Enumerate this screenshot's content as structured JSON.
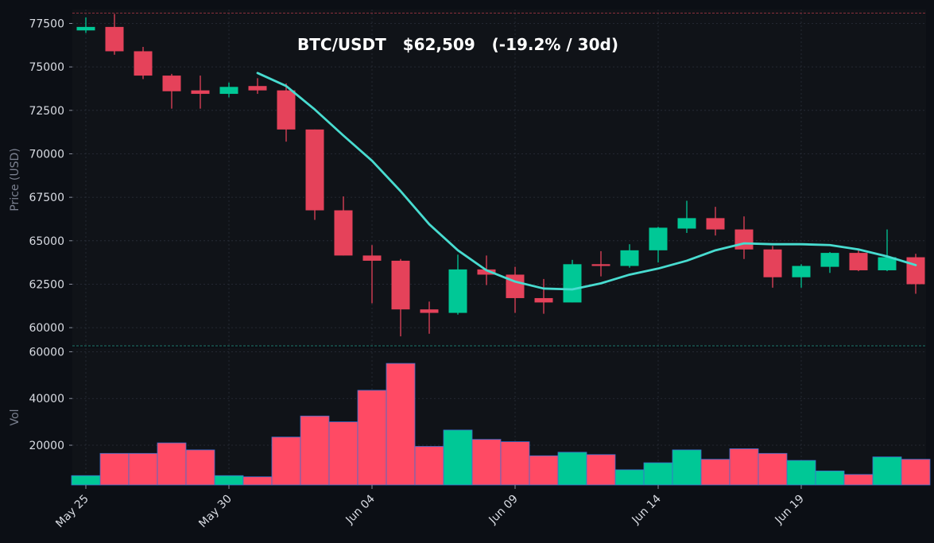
{
  "chart_data": [
    {
      "type": "candlestick",
      "title": "BTC/USDT   $62,509   (-19.2% / 30d)",
      "ylabel": "Price (USD)",
      "ylim": [
        59000,
        78300
      ],
      "yticks": [
        60000,
        62500,
        65000,
        67500,
        70000,
        72500,
        75000,
        77500
      ],
      "ytick_labels": [
        "60000",
        "62500",
        "65000",
        "67500",
        "70000",
        "72500",
        "75000",
        "77500"
      ],
      "xticks": [
        {
          "index": 0,
          "label": "May 25"
        },
        {
          "index": 5,
          "label": "May 30"
        },
        {
          "index": 10,
          "label": "Jun 04"
        },
        {
          "index": 15,
          "label": "Jun 09"
        },
        {
          "index": 20,
          "label": "Jun 14"
        },
        {
          "index": 25,
          "label": "Jun 19"
        }
      ],
      "candles": [
        {
          "open": 77100,
          "high": 77850,
          "low": 76950,
          "close": 77300
        },
        {
          "open": 77300,
          "high": 78050,
          "low": 75700,
          "close": 75900
        },
        {
          "open": 75900,
          "high": 76150,
          "low": 74300,
          "close": 74500
        },
        {
          "open": 74500,
          "high": 74600,
          "low": 72600,
          "close": 73600
        },
        {
          "open": 73650,
          "high": 74500,
          "low": 72600,
          "close": 73450
        },
        {
          "open": 73450,
          "high": 74100,
          "low": 73250,
          "close": 73850
        },
        {
          "open": 73900,
          "high": 74350,
          "low": 73450,
          "close": 73650
        },
        {
          "open": 73650,
          "high": 74050,
          "low": 70700,
          "close": 71400
        },
        {
          "open": 71400,
          "high": 71400,
          "low": 66200,
          "close": 66750
        },
        {
          "open": 66750,
          "high": 67550,
          "low": 64150,
          "close": 64150
        },
        {
          "open": 64150,
          "high": 64750,
          "low": 61400,
          "close": 63850
        },
        {
          "open": 63850,
          "high": 63950,
          "low": 59500,
          "close": 61050
        },
        {
          "open": 61050,
          "high": 61500,
          "low": 59650,
          "close": 60850
        },
        {
          "open": 60850,
          "high": 64200,
          "low": 60750,
          "close": 63350
        },
        {
          "open": 63350,
          "high": 64150,
          "low": 62450,
          "close": 63050
        },
        {
          "open": 63050,
          "high": 63500,
          "low": 60850,
          "close": 61700
        },
        {
          "open": 61700,
          "high": 62800,
          "low": 60800,
          "close": 61450
        },
        {
          "open": 61450,
          "high": 63900,
          "low": 61450,
          "close": 63650
        },
        {
          "open": 63650,
          "high": 64400,
          "low": 62950,
          "close": 63550
        },
        {
          "open": 63550,
          "high": 64800,
          "low": 63450,
          "close": 64450
        },
        {
          "open": 64450,
          "high": 65800,
          "low": 63750,
          "close": 65750
        },
        {
          "open": 65700,
          "high": 67300,
          "low": 65450,
          "close": 66300
        },
        {
          "open": 66300,
          "high": 66950,
          "low": 65300,
          "close": 65650
        },
        {
          "open": 65650,
          "high": 66400,
          "low": 63950,
          "close": 64500
        },
        {
          "open": 64500,
          "high": 64700,
          "low": 62300,
          "close": 62900
        },
        {
          "open": 62900,
          "high": 63650,
          "low": 62300,
          "close": 63550
        },
        {
          "open": 63500,
          "high": 64350,
          "low": 63150,
          "close": 64300
        },
        {
          "open": 64300,
          "high": 64550,
          "low": 63250,
          "close": 63300
        },
        {
          "open": 63300,
          "high": 65650,
          "low": 63250,
          "close": 64050
        },
        {
          "open": 64050,
          "high": 64250,
          "low": 61950,
          "close": 62500
        }
      ],
      "moving_average": {
        "start_index": 6,
        "values": [
          74650,
          73900,
          72550,
          71050,
          69600,
          67850,
          65950,
          64450,
          63300,
          62650,
          62250,
          62200,
          62550,
          63050,
          63400,
          63850,
          64450,
          64850,
          64800,
          64800,
          64750,
          64500,
          64100,
          63600
        ]
      },
      "reference_line": 78100,
      "colors": {
        "up": "#00c896",
        "down": "#e5425a",
        "ma": "#48dcd0",
        "reference": "#b23a48",
        "background": "#101318"
      }
    },
    {
      "type": "bar",
      "ylabel": "Vol",
      "ylim": [
        3000,
        61500
      ],
      "yticks": [
        20000,
        40000,
        60000
      ],
      "ytick_labels": [
        "20000",
        "40000",
        "60000"
      ],
      "values": [
        7000,
        16500,
        16500,
        21000,
        18000,
        7000,
        6500,
        23500,
        32500,
        30000,
        43500,
        55000,
        19500,
        26500,
        22500,
        21500,
        15500,
        17000,
        16000,
        9500,
        12500,
        18000,
        14000,
        18500,
        16500,
        13500,
        9000,
        7500,
        15000,
        14000
      ],
      "directions": [
        "up",
        "down",
        "down",
        "down",
        "down",
        "up",
        "down",
        "down",
        "down",
        "down",
        "down",
        "down",
        "down",
        "up",
        "down",
        "down",
        "down",
        "up",
        "down",
        "up",
        "up",
        "up",
        "down",
        "down",
        "down",
        "up",
        "up",
        "down",
        "up",
        "down"
      ],
      "colors": {
        "up": "#00c896",
        "down": "#ff4a64",
        "edge": "#3d6fd0",
        "baseline": "#1f7a6a"
      }
    }
  ]
}
